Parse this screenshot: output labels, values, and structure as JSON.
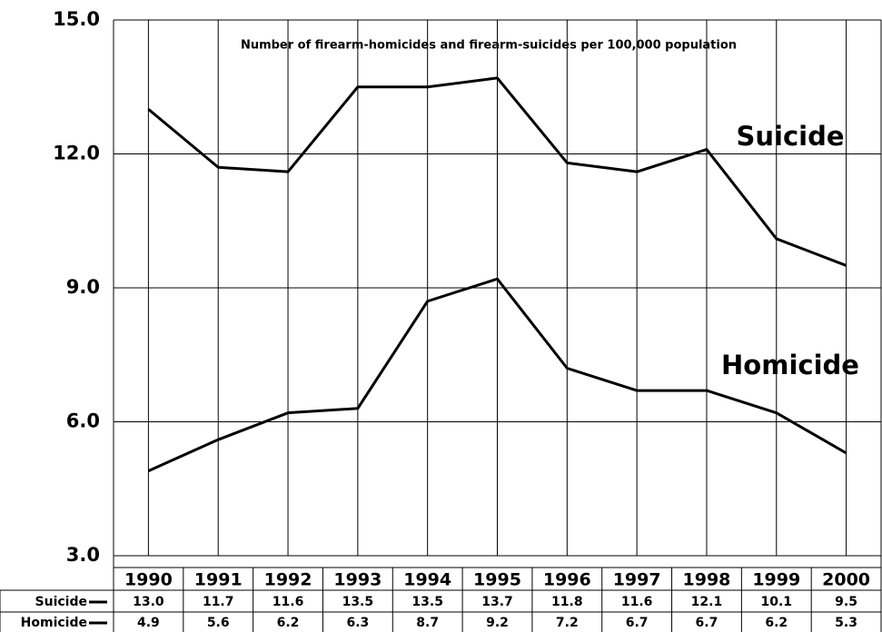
{
  "chart_data": {
    "type": "line",
    "title": "Number of firearm-homicides and firearm-suicides per 100,000 population",
    "categories": [
      "1990",
      "1991",
      "1992",
      "1993",
      "1994",
      "1995",
      "1996",
      "1997",
      "1998",
      "1999",
      "2000"
    ],
    "series": [
      {
        "name": "Suicide",
        "color": "#000000",
        "values": [
          13.0,
          11.7,
          11.6,
          13.5,
          13.5,
          13.7,
          11.8,
          11.6,
          12.1,
          10.1,
          9.5
        ],
        "value_labels": [
          "13.0",
          "11.7",
          "11.6",
          "13.5",
          "13.5",
          "13.7",
          "11.8",
          "11.6",
          "12.1",
          "10.1",
          "9.5"
        ]
      },
      {
        "name": "Homicide",
        "color": "#000000",
        "values": [
          4.9,
          5.6,
          6.2,
          6.3,
          8.7,
          9.2,
          7.2,
          6.7,
          6.7,
          6.2,
          5.3
        ],
        "value_labels": [
          "4.9",
          "5.6",
          "6.2",
          "6.3",
          "8.7",
          "9.2",
          "7.2",
          "6.7",
          "6.7",
          "6.2",
          "5.3"
        ]
      }
    ],
    "ylim": [
      3,
      15
    ],
    "yticks": [
      {
        "value": 3,
        "label": "3.0"
      },
      {
        "value": 6,
        "label": "6.0"
      },
      {
        "value": 9,
        "label": "9.0"
      },
      {
        "value": 12,
        "label": "12.0"
      },
      {
        "value": 15,
        "label": "15.0"
      }
    ],
    "grid": true
  }
}
